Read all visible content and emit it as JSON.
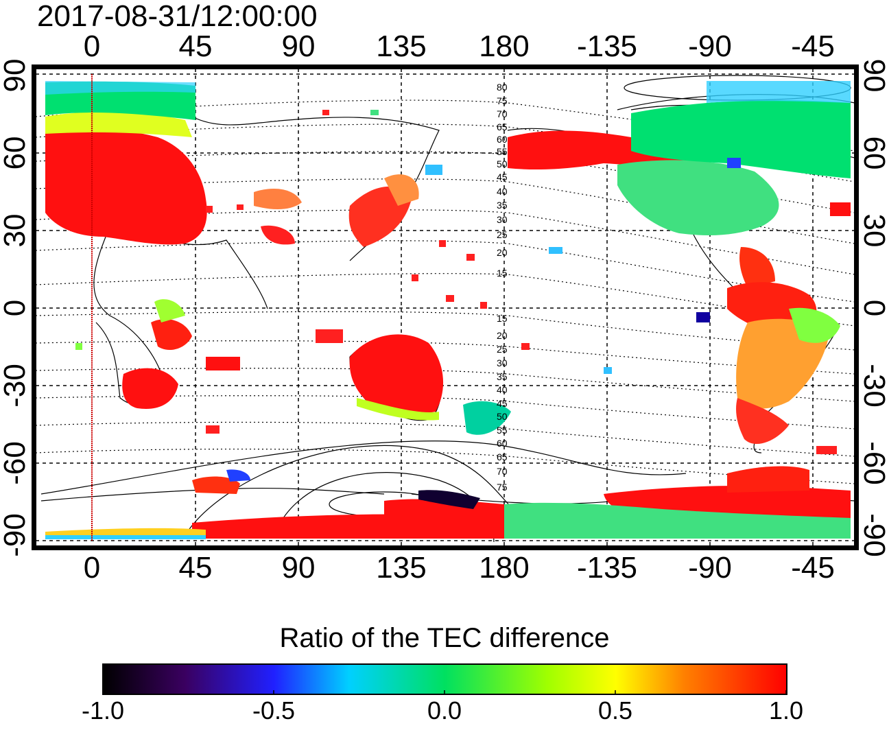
{
  "title": "2017-08-31/12:00:00",
  "top_ticks": [
    "0",
    "45",
    "90",
    "135",
    "180",
    "-135",
    "-90",
    "-45"
  ],
  "bottom_ticks": [
    "0",
    "45",
    "90",
    "135",
    "180",
    "-135",
    "-90",
    "-45"
  ],
  "left_ticks": [
    "90",
    "60",
    "30",
    "0",
    "-30",
    "-60",
    "-90"
  ],
  "right_ticks": [
    "90",
    "60",
    "30",
    "0",
    "-30",
    "-60",
    "-90"
  ],
  "contour_labels": [
    "80",
    "75",
    "70",
    "65",
    "60",
    "55",
    "50",
    "45",
    "40",
    "35",
    "30",
    "25",
    "20",
    "15",
    "15",
    "20",
    "25",
    "30",
    "35",
    "40",
    "45",
    "50",
    "55",
    "60",
    "65",
    "70",
    "75"
  ],
  "colorbar": {
    "title": "Ratio of the TEC difference",
    "ticks": [
      "-1.0",
      "-0.5",
      "0.0",
      "0.5",
      "1.0"
    ],
    "min": -1.0,
    "max": 1.0
  },
  "colors": {
    "ratio_high": "#ff0000",
    "ratio_mid": "#00e060",
    "ratio_low": "#000010",
    "meridian_line": "#cc0000"
  }
}
